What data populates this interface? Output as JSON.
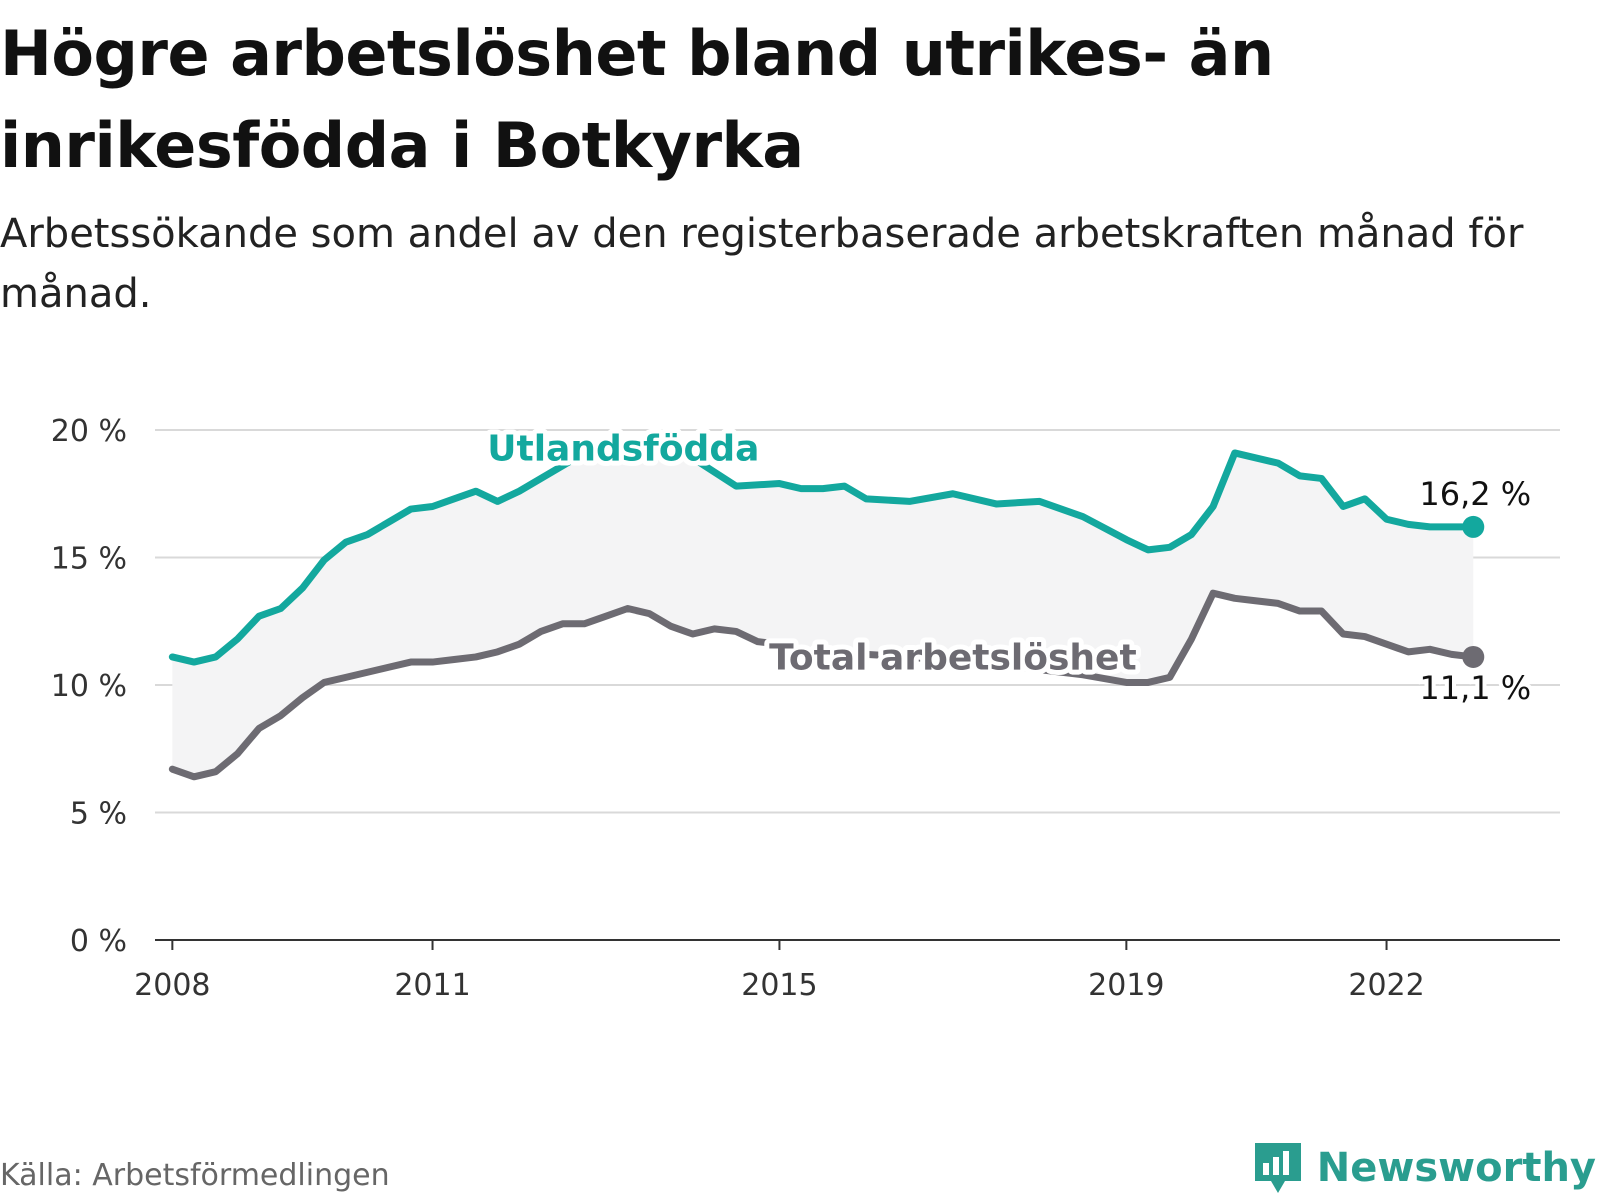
{
  "title": "Högre arbetslöshet bland utrikes- än inrikesfödda i Botkyrka",
  "subtitle": "Arbetssökande som andel av den registerbaserade arbetskraften månad för månad.",
  "source": "Källa: Arbetsförmedlingen",
  "brand": {
    "name": "Newsworthy",
    "icon": "newsworthy-logo-icon"
  },
  "colors": {
    "foreign": "#13a89e",
    "total": "#6d6b72",
    "band": "#f4f4f5",
    "grid": "#d9d9d9",
    "axis": "#333333"
  },
  "chart_data": {
    "type": "line",
    "title": "Högre arbetslöshet bland utrikes- än inrikesfödda i Botkyrka",
    "xlabel": "",
    "ylabel": "",
    "xlim": [
      2007.8,
      2024.0
    ],
    "ylim": [
      0,
      20
    ],
    "yticks": [
      {
        "value": 0,
        "label": "0 %"
      },
      {
        "value": 5,
        "label": "5 %"
      },
      {
        "value": 10,
        "label": "10 %"
      },
      {
        "value": 15,
        "label": "15 %"
      },
      {
        "value": 20,
        "label": "20 %"
      }
    ],
    "xticks": [
      {
        "value": 2008,
        "label": "2008"
      },
      {
        "value": 2011,
        "label": "2011"
      },
      {
        "value": 2015,
        "label": "2015"
      },
      {
        "value": 2019,
        "label": "2019"
      },
      {
        "value": 2022,
        "label": "2022"
      }
    ],
    "series": [
      {
        "name": "Utlandsfödda",
        "label": "Utlandsfödda",
        "end_label": "16,2 %",
        "x": [
          2008.0,
          2008.25,
          2008.5,
          2008.75,
          2009.0,
          2009.25,
          2009.5,
          2009.75,
          2010.0,
          2010.25,
          2010.5,
          2010.75,
          2011.0,
          2011.25,
          2011.5,
          2011.75,
          2012.0,
          2012.25,
          2012.5,
          2012.75,
          2013.0,
          2013.5,
          2014.0,
          2014.5,
          2015.0,
          2015.25,
          2015.5,
          2015.75,
          2016.0,
          2016.5,
          2017.0,
          2017.5,
          2018.0,
          2018.5,
          2019.0,
          2019.25,
          2019.5,
          2019.75,
          2020.0,
          2020.25,
          2020.5,
          2020.75,
          2021.0,
          2021.25,
          2021.5,
          2021.75,
          2022.0,
          2022.25,
          2022.5,
          2022.75,
          2023.0
        ],
        "values": [
          11.1,
          10.9,
          11.1,
          11.8,
          12.7,
          13.0,
          13.8,
          14.9,
          15.6,
          15.9,
          16.4,
          16.9,
          17.0,
          17.3,
          17.6,
          17.2,
          17.6,
          18.1,
          18.6,
          19.1,
          19.4,
          19.6,
          18.9,
          17.8,
          17.9,
          17.7,
          17.7,
          17.8,
          17.3,
          17.2,
          17.5,
          17.1,
          17.2,
          16.6,
          15.7,
          15.3,
          15.4,
          15.9,
          17.0,
          19.1,
          18.9,
          18.7,
          18.2,
          18.1,
          17.0,
          17.3,
          16.5,
          16.3,
          16.2,
          16.2,
          16.2
        ]
      },
      {
        "name": "Total arbetslöshet",
        "label": "Total arbetslöshet",
        "end_label": "11,1 %",
        "x": [
          2008.0,
          2008.25,
          2008.5,
          2008.75,
          2009.0,
          2009.25,
          2009.5,
          2009.75,
          2010.0,
          2010.25,
          2010.5,
          2010.75,
          2011.0,
          2011.25,
          2011.5,
          2011.75,
          2012.0,
          2012.25,
          2012.5,
          2012.75,
          2013.0,
          2013.25,
          2013.5,
          2013.75,
          2014.0,
          2014.25,
          2014.5,
          2014.75,
          2015.0,
          2015.25,
          2015.5,
          2016.0,
          2016.5,
          2017.0,
          2017.5,
          2018.0,
          2018.5,
          2019.0,
          2019.25,
          2019.5,
          2019.75,
          2020.0,
          2020.25,
          2020.5,
          2020.75,
          2021.0,
          2021.25,
          2021.5,
          2021.75,
          2022.0,
          2022.25,
          2022.5,
          2022.75,
          2023.0
        ],
        "values": [
          6.7,
          6.4,
          6.6,
          7.3,
          8.3,
          8.8,
          9.5,
          10.1,
          10.3,
          10.5,
          10.7,
          10.9,
          10.9,
          11.0,
          11.1,
          11.3,
          11.6,
          12.1,
          12.4,
          12.4,
          12.7,
          13.0,
          12.8,
          12.3,
          12.0,
          12.2,
          12.1,
          11.7,
          11.6,
          11.4,
          11.3,
          11.2,
          11.1,
          10.9,
          10.8,
          10.6,
          10.4,
          10.1,
          10.1,
          10.3,
          11.8,
          13.6,
          13.4,
          13.3,
          13.2,
          12.9,
          12.9,
          12.0,
          11.9,
          11.6,
          11.3,
          11.4,
          11.2,
          11.1
        ]
      }
    ]
  }
}
